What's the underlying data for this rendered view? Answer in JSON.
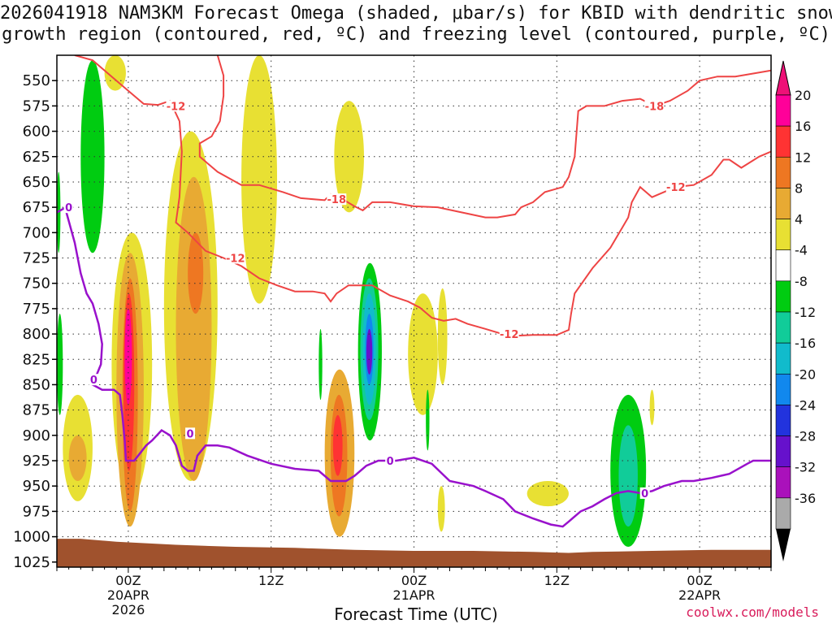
{
  "title_line1": "2026041918 NAM3KM Forecast Omega (shaded, μbar/s) for KBID with dendritic snow",
  "title_line2": "growth region (contoured, red, ºC) and freezing level (contoured, purple, ºC)",
  "credit": "coolwx.com/models",
  "chart_data": {
    "type": "heatmap",
    "title": "2026041918 NAM3KM Forecast Omega (shaded, μbar/s) for KBID with dendritic snow growth region (contoured, red, ºC) and freezing level (contoured, purple, ºC)",
    "xlabel": "Forecast Time (UTC)",
    "ylabel": "",
    "x_units": "forecast hour",
    "xlim": [
      0,
      60
    ],
    "ylim": [
      1030,
      525
    ],
    "x_ticks": [
      {
        "x": 6,
        "label": "00Z",
        "sub1": "20APR",
        "sub2": "2026"
      },
      {
        "x": 18,
        "label": "12Z",
        "sub1": "",
        "sub2": ""
      },
      {
        "x": 30,
        "label": "00Z",
        "sub1": "21APR",
        "sub2": ""
      },
      {
        "x": 42,
        "label": "12Z",
        "sub1": "",
        "sub2": ""
      },
      {
        "x": 54,
        "label": "00Z",
        "sub1": "22APR",
        "sub2": ""
      }
    ],
    "y_ticks": [
      550,
      575,
      600,
      625,
      650,
      675,
      700,
      725,
      750,
      775,
      800,
      825,
      850,
      875,
      900,
      925,
      950,
      975,
      1000,
      1025
    ],
    "colorbar": {
      "labels": [
        "20",
        "16",
        "12",
        "8",
        "4",
        "-4",
        "-8",
        "-12",
        "-16",
        "-20",
        "-24",
        "-28",
        "-32",
        "-36"
      ],
      "bins": [
        {
          "color": "#ff0099",
          "range": [
            20,
            24
          ]
        },
        {
          "color": "#ff3333",
          "range": [
            16,
            20
          ]
        },
        {
          "color": "#ee7722",
          "range": [
            12,
            16
          ]
        },
        {
          "color": "#e8aa33",
          "range": [
            8,
            12
          ]
        },
        {
          "color": "#e8e033",
          "range": [
            4,
            8
          ]
        },
        {
          "color": "#ffffff",
          "range": [
            -4,
            4
          ]
        },
        {
          "color": "#00cc11",
          "range": [
            -8,
            -4
          ]
        },
        {
          "color": "#11cc99",
          "range": [
            -12,
            -8
          ]
        },
        {
          "color": "#11bbcc",
          "range": [
            -16,
            -12
          ]
        },
        {
          "color": "#1188ee",
          "range": [
            -20,
            -16
          ]
        },
        {
          "color": "#2233dd",
          "range": [
            -24,
            -20
          ]
        },
        {
          "color": "#6611cc",
          "range": [
            -28,
            -24
          ]
        },
        {
          "color": "#aa11bb",
          "range": [
            -32,
            -28
          ]
        },
        {
          "color": "#aaaaaa",
          "range": [
            -36,
            -32
          ]
        }
      ],
      "top_arrow_color": "#ee1177",
      "bottom_arrow_color": "#000000"
    },
    "omega_features": [
      {
        "name": "ascent-green-upper-left",
        "x": [
          2.0,
          4.0
        ],
        "p": [
          530,
          720
        ],
        "value": -6,
        "color": "#00cc11"
      },
      {
        "name": "ascent-green-strip",
        "x": [
          0.0,
          0.3
        ],
        "p": [
          640,
          720
        ],
        "value": -6,
        "color": "#00cc11"
      },
      {
        "name": "ascent-green-lower-left",
        "x": [
          0.0,
          0.5
        ],
        "p": [
          780,
          880
        ],
        "value": -6,
        "color": "#00cc11"
      },
      {
        "name": "yellow-upper-left",
        "x": [
          4.0,
          5.8
        ],
        "p": [
          525,
          560
        ],
        "value": 5,
        "color": "#e8e033"
      },
      {
        "name": "yellow-tall-a",
        "x": [
          4.6,
          8.0
        ],
        "p": [
          700,
          960
        ],
        "value": 5,
        "color": "#e8e033"
      },
      {
        "name": "yellow-tall-b",
        "x": [
          9.0,
          13.5
        ],
        "p": [
          600,
          945
        ],
        "value": 5,
        "color": "#e8e033"
      },
      {
        "name": "yellow-column-c",
        "x": [
          15.5,
          18.5
        ],
        "p": [
          525,
          770
        ],
        "value": 5,
        "color": "#e8e033"
      },
      {
        "name": "yellow-column-d",
        "x": [
          23.3,
          25.8
        ],
        "p": [
          570,
          680
        ],
        "value": 5,
        "color": "#e8e033"
      },
      {
        "name": "yellow-pocket-e",
        "x": [
          29.5,
          32.0
        ],
        "p": [
          760,
          880
        ],
        "value": 5,
        "color": "#e8e033"
      },
      {
        "name": "yellow-small-f",
        "x": [
          32.0,
          32.8
        ],
        "p": [
          755,
          850
        ],
        "value": 5,
        "color": "#e8e033"
      },
      {
        "name": "yellow-small-g",
        "x": [
          32.0,
          32.6
        ],
        "p": [
          950,
          995
        ],
        "value": 5,
        "color": "#e8e033"
      },
      {
        "name": "yellow-lower-left",
        "x": [
          0.5,
          3.0
        ],
        "p": [
          860,
          965
        ],
        "value": 5,
        "color": "#e8e033"
      },
      {
        "name": "yellow-lower-right",
        "x": [
          39.5,
          43.0
        ],
        "p": [
          945,
          970
        ],
        "value": 5,
        "color": "#e8e033"
      },
      {
        "name": "yellow-tiny-right",
        "x": [
          49.8,
          50.2
        ],
        "p": [
          855,
          890
        ],
        "value": 5,
        "color": "#e8e033"
      },
      {
        "name": "orange-tall-a",
        "x": [
          5.0,
          7.3
        ],
        "p": [
          720,
          990
        ],
        "value": 10,
        "color": "#e8aa33"
      },
      {
        "name": "orange-band-b",
        "x": [
          10.0,
          13.0
        ],
        "p": [
          645,
          945
        ],
        "value": 10,
        "color": "#e8aa33"
      },
      {
        "name": "orange-lower-left",
        "x": [
          1.0,
          2.5
        ],
        "p": [
          900,
          945
        ],
        "value": 10,
        "color": "#e8aa33"
      },
      {
        "name": "orange-column-c",
        "x": [
          22.5,
          25.0
        ],
        "p": [
          835,
          1000
        ],
        "value": 12,
        "color": "#e8aa33"
      },
      {
        "name": "orange-core-a",
        "x": [
          5.5,
          6.8
        ],
        "p": [
          745,
          975
        ],
        "value": 14,
        "color": "#ee7722"
      },
      {
        "name": "orange-core-b",
        "x": [
          11.0,
          12.3
        ],
        "p": [
          700,
          780
        ],
        "value": 14,
        "color": "#ee7722"
      },
      {
        "name": "orange-core-c",
        "x": [
          23.0,
          24.4
        ],
        "p": [
          860,
          980
        ],
        "value": 14,
        "color": "#ee7722"
      },
      {
        "name": "red-core-a",
        "x": [
          5.6,
          6.5
        ],
        "p": [
          760,
          935
        ],
        "value": 18,
        "color": "#ff3333"
      },
      {
        "name": "red-core-c",
        "x": [
          23.2,
          24.0
        ],
        "p": [
          880,
          940
        ],
        "value": 18,
        "color": "#ff3333"
      },
      {
        "name": "magenta-peak-a",
        "x": [
          5.7,
          6.3
        ],
        "p": [
          775,
          870
        ],
        "value": 22,
        "color": "#ff0099"
      },
      {
        "name": "descent-green-core",
        "x": [
          25.3,
          27.3
        ],
        "p": [
          730,
          905
        ],
        "value": -6,
        "color": "#00cc11"
      },
      {
        "name": "descent-teal-core",
        "x": [
          25.5,
          27.0
        ],
        "p": [
          745,
          885
        ],
        "value": -10,
        "color": "#11cc99"
      },
      {
        "name": "descent-cyan-core",
        "x": [
          25.7,
          26.8
        ],
        "p": [
          760,
          870
        ],
        "value": -14,
        "color": "#11bbcc"
      },
      {
        "name": "descent-blue-core",
        "x": [
          25.9,
          26.6
        ],
        "p": [
          780,
          850
        ],
        "value": -18,
        "color": "#1188ee"
      },
      {
        "name": "descent-violet-core",
        "x": [
          26.0,
          26.5
        ],
        "p": [
          795,
          840
        ],
        "value": -26,
        "color": "#6611cc"
      },
      {
        "name": "green-thin-a",
        "x": [
          22.0,
          22.3
        ],
        "p": [
          795,
          865
        ],
        "value": -6,
        "color": "#00cc11"
      },
      {
        "name": "green-thin-b",
        "x": [
          31.0,
          31.3
        ],
        "p": [
          855,
          915
        ],
        "value": -6,
        "color": "#00cc11"
      },
      {
        "name": "descent-green-right",
        "x": [
          46.5,
          49.5
        ],
        "p": [
          860,
          1010
        ],
        "value": -6,
        "color": "#00cc11"
      },
      {
        "name": "descent-teal-right",
        "x": [
          47.2,
          48.8
        ],
        "p": [
          890,
          990
        ],
        "value": -10,
        "color": "#11cc99"
      }
    ],
    "dgz_label_positions": [
      {
        "x": 10.0,
        "p": 575,
        "label": "-12"
      },
      {
        "x": 23.5,
        "p": 667,
        "label": "-18"
      },
      {
        "x": 15.0,
        "p": 725,
        "label": "-12"
      },
      {
        "x": 38.0,
        "p": 800,
        "label": "-12"
      },
      {
        "x": 50.2,
        "p": 575,
        "label": "-18"
      },
      {
        "x": 52.0,
        "p": 655,
        "label": "-12"
      }
    ],
    "dgz_minus12_left": [
      [
        1.5,
        525
      ],
      [
        3.0,
        530
      ],
      [
        4.5,
        545
      ],
      [
        6.0,
        560
      ],
      [
        7.3,
        573
      ],
      [
        8.5,
        574
      ],
      [
        9.5,
        570
      ],
      [
        10.3,
        590
      ],
      [
        10.5,
        620
      ],
      [
        10.3,
        665
      ],
      [
        10.0,
        690
      ],
      [
        11.0,
        700
      ],
      [
        12.5,
        718
      ],
      [
        14.0,
        725
      ],
      [
        15.5,
        733
      ],
      [
        17.0,
        745
      ],
      [
        18.5,
        752
      ],
      [
        20.0,
        758
      ],
      [
        21.5,
        758
      ],
      [
        22.5,
        760
      ],
      [
        23.0,
        768
      ],
      [
        23.5,
        760
      ],
      [
        24.5,
        752
      ],
      [
        26.5,
        752
      ],
      [
        28.0,
        762
      ],
      [
        29.5,
        768
      ],
      [
        30.5,
        774
      ],
      [
        31.5,
        784
      ],
      [
        32.5,
        787
      ],
      [
        33.5,
        785
      ],
      [
        34.5,
        790
      ],
      [
        36.0,
        795
      ],
      [
        38.0,
        802
      ],
      [
        40.0,
        801
      ],
      [
        42.0,
        801
      ],
      [
        43.0,
        796
      ],
      [
        43.2,
        780
      ],
      [
        43.5,
        760
      ],
      [
        45.0,
        735
      ],
      [
        46.5,
        715
      ],
      [
        47.5,
        695
      ],
      [
        48.0,
        685
      ],
      [
        48.3,
        670
      ],
      [
        49.0,
        655
      ],
      [
        50.0,
        665
      ],
      [
        51.0,
        660
      ],
      [
        52.0,
        655
      ],
      [
        53.5,
        653
      ],
      [
        55.0,
        643
      ],
      [
        56.0,
        628
      ],
      [
        56.5,
        628
      ],
      [
        57.5,
        636
      ],
      [
        59.0,
        625
      ],
      [
        60.0,
        620
      ]
    ],
    "dgz_minus12_right": [
      [
        13.5,
        525
      ],
      [
        14.0,
        545
      ],
      [
        14.0,
        565
      ],
      [
        13.7,
        590
      ],
      [
        13.0,
        605
      ],
      [
        12.0,
        612
      ],
      [
        12.0,
        625
      ],
      [
        13.5,
        640
      ],
      [
        15.5,
        653
      ],
      [
        17.0,
        653
      ],
      [
        19.0,
        660
      ],
      [
        20.5,
        666
      ],
      [
        22.5,
        668
      ],
      [
        23.0,
        662
      ],
      [
        24.0,
        667
      ],
      [
        25.0,
        674
      ],
      [
        25.7,
        678
      ],
      [
        26.5,
        670
      ],
      [
        28.0,
        670
      ],
      [
        30.0,
        674
      ],
      [
        32.0,
        675
      ],
      [
        34.0,
        680
      ],
      [
        36.0,
        685
      ],
      [
        37.0,
        685
      ],
      [
        38.5,
        682
      ],
      [
        39.0,
        675
      ],
      [
        40.0,
        670
      ],
      [
        41.0,
        660
      ],
      [
        42.5,
        655
      ],
      [
        43.0,
        645
      ],
      [
        43.5,
        625
      ],
      [
        43.8,
        580
      ],
      [
        44.5,
        575
      ],
      [
        46.0,
        575
      ],
      [
        47.5,
        570
      ],
      [
        49.0,
        568
      ],
      [
        50.2,
        575
      ],
      [
        51.5,
        570
      ],
      [
        53.0,
        560
      ],
      [
        54.0,
        550
      ],
      [
        55.5,
        546
      ],
      [
        57.0,
        546
      ],
      [
        58.5,
        543
      ],
      [
        60.0,
        540
      ]
    ],
    "freezing_level_0C": [
      [
        0.0,
        680
      ],
      [
        0.6,
        676
      ],
      [
        0.8,
        680
      ],
      [
        1.5,
        710
      ],
      [
        2.0,
        740
      ],
      [
        2.5,
        760
      ],
      [
        3.0,
        770
      ],
      [
        3.5,
        790
      ],
      [
        3.8,
        810
      ],
      [
        3.7,
        830
      ],
      [
        3.0,
        850
      ],
      [
        3.8,
        855
      ],
      [
        4.8,
        855
      ],
      [
        5.3,
        860
      ],
      [
        5.5,
        880
      ],
      [
        5.7,
        905
      ],
      [
        5.8,
        925
      ],
      [
        6.5,
        925
      ],
      [
        7.5,
        910
      ],
      [
        8.0,
        905
      ],
      [
        8.8,
        895
      ],
      [
        9.5,
        900
      ],
      [
        10.0,
        910
      ],
      [
        10.5,
        930
      ],
      [
        11.0,
        935
      ],
      [
        11.5,
        935
      ],
      [
        11.8,
        920
      ],
      [
        12.5,
        910
      ],
      [
        13.5,
        910
      ],
      [
        14.5,
        912
      ],
      [
        16.0,
        920
      ],
      [
        18.0,
        928
      ],
      [
        20.0,
        933
      ],
      [
        22.0,
        935
      ],
      [
        23.0,
        945
      ],
      [
        24.3,
        945
      ],
      [
        25.0,
        940
      ],
      [
        26.0,
        930
      ],
      [
        27.0,
        925
      ],
      [
        28.5,
        925
      ],
      [
        30.0,
        922
      ],
      [
        31.5,
        928
      ],
      [
        33.0,
        945
      ],
      [
        35.0,
        950
      ],
      [
        36.0,
        955
      ],
      [
        37.5,
        963
      ],
      [
        38.5,
        975
      ],
      [
        40.0,
        982
      ],
      [
        41.5,
        988
      ],
      [
        42.5,
        990
      ],
      [
        43.0,
        985
      ],
      [
        44.0,
        975
      ],
      [
        45.0,
        970
      ],
      [
        46.0,
        963
      ],
      [
        47.0,
        957
      ],
      [
        48.0,
        955
      ],
      [
        49.0,
        957
      ],
      [
        50.0,
        955
      ],
      [
        51.0,
        950
      ],
      [
        52.5,
        945
      ],
      [
        53.5,
        945
      ],
      [
        55.0,
        942
      ],
      [
        56.5,
        938
      ],
      [
        58.0,
        928
      ],
      [
        58.5,
        925
      ],
      [
        60.0,
        925
      ]
    ],
    "freezing_label_positions": [
      {
        "x": 1.0,
        "p": 675,
        "label": "0"
      },
      {
        "x": 3.1,
        "p": 845,
        "label": "0"
      },
      {
        "x": 11.2,
        "p": 898,
        "label": "0"
      },
      {
        "x": 28.0,
        "p": 925,
        "label": "0"
      },
      {
        "x": 49.4,
        "p": 957,
        "label": "0"
      }
    ],
    "terrain_surface_p": [
      [
        0.0,
        1002
      ],
      [
        2.0,
        1002
      ],
      [
        5.0,
        1005
      ],
      [
        10.0,
        1008
      ],
      [
        15.0,
        1010
      ],
      [
        20.0,
        1011
      ],
      [
        25.0,
        1013
      ],
      [
        30.0,
        1014
      ],
      [
        35.0,
        1014
      ],
      [
        40.0,
        1015
      ],
      [
        43.0,
        1016
      ],
      [
        45.0,
        1015
      ],
      [
        50.0,
        1014
      ],
      [
        55.0,
        1013
      ],
      [
        60.0,
        1013
      ]
    ]
  }
}
